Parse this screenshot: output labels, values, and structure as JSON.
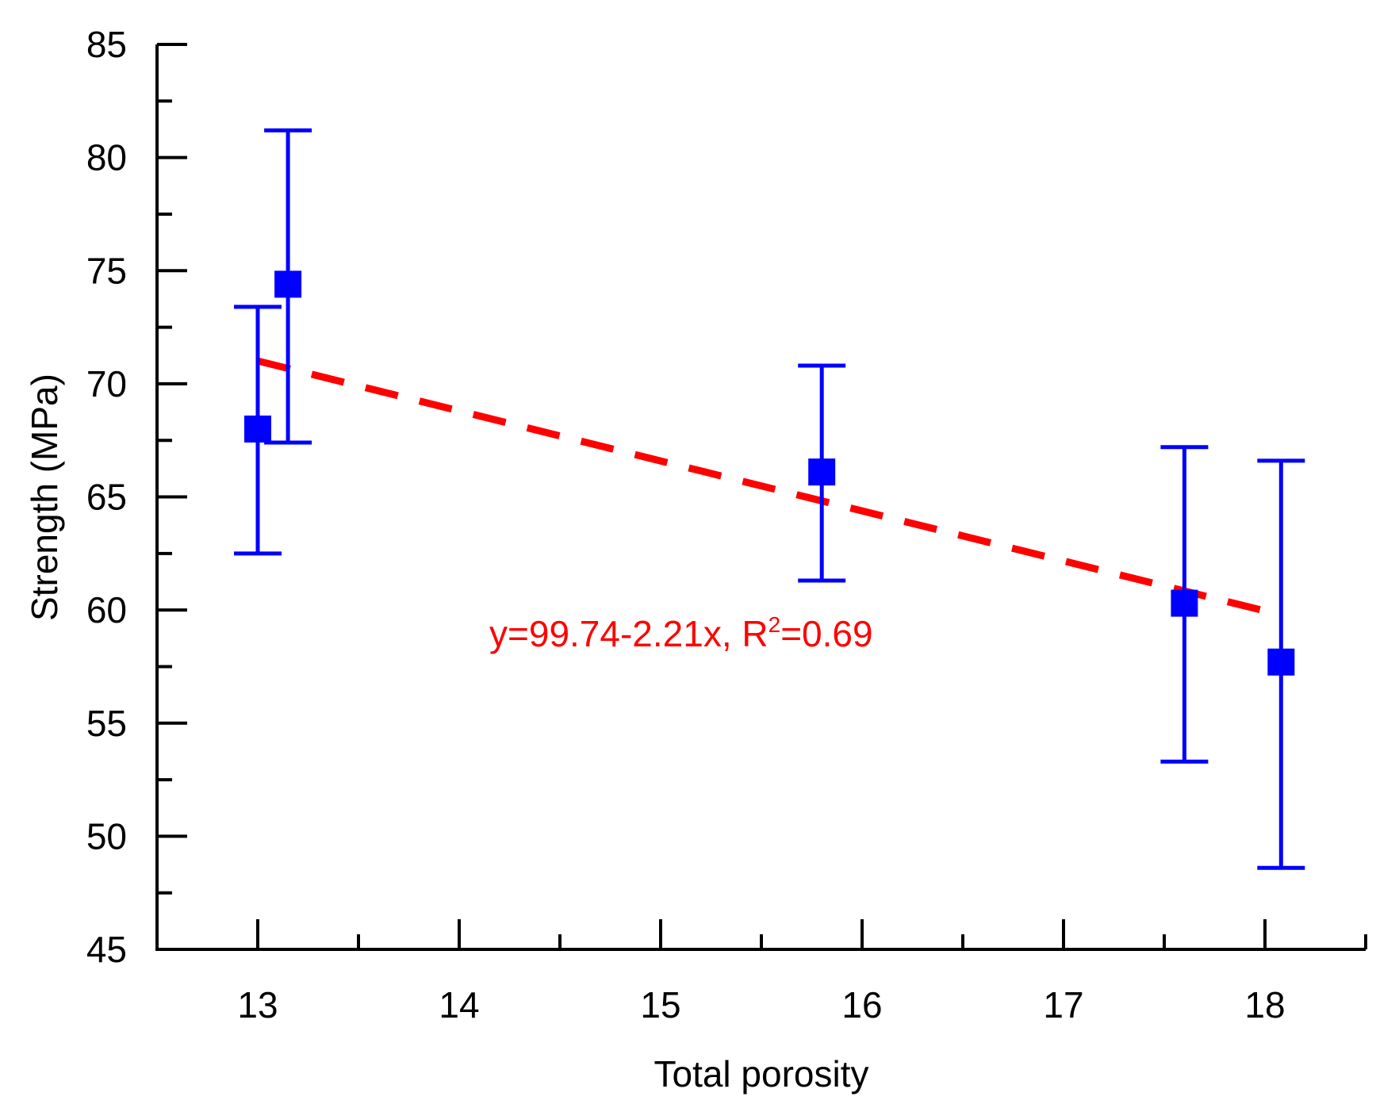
{
  "chart_data": {
    "type": "scatter",
    "title": "",
    "xlabel": "Total porosity",
    "ylabel": "Strength (MPa)",
    "xlim": [
      12.5,
      18.5
    ],
    "ylim": [
      45,
      85
    ],
    "x_ticks": [
      13,
      14,
      15,
      16,
      17,
      18
    ],
    "y_ticks": [
      45,
      50,
      55,
      60,
      65,
      70,
      75,
      80,
      85
    ],
    "x_tick_labels": [
      "13",
      "14",
      "15",
      "16",
      "17",
      "18"
    ],
    "y_tick_labels": [
      "45",
      "50",
      "55",
      "60",
      "65",
      "70",
      "75",
      "80",
      "85"
    ],
    "series": [
      {
        "name": "Strength",
        "color": "#0000ff",
        "points": [
          {
            "x": 13.0,
            "y": 68.0,
            "y_low": 62.5,
            "y_high": 73.4
          },
          {
            "x": 13.15,
            "y": 74.4,
            "y_low": 67.4,
            "y_high": 81.2
          },
          {
            "x": 15.8,
            "y": 66.1,
            "y_low": 61.3,
            "y_high": 70.8
          },
          {
            "x": 17.6,
            "y": 60.3,
            "y_low": 53.3,
            "y_high": 67.2
          },
          {
            "x": 18.08,
            "y": 57.7,
            "y_low": 48.6,
            "y_high": 66.6
          }
        ]
      }
    ],
    "fit": {
      "color": "#ff0000",
      "intercept": 99.74,
      "slope": -2.21,
      "x_range": [
        13.0,
        18.05
      ],
      "label_main": "y=99.74-2.21x, R",
      "label_sup": "2",
      "label_end": "=0.69"
    }
  }
}
